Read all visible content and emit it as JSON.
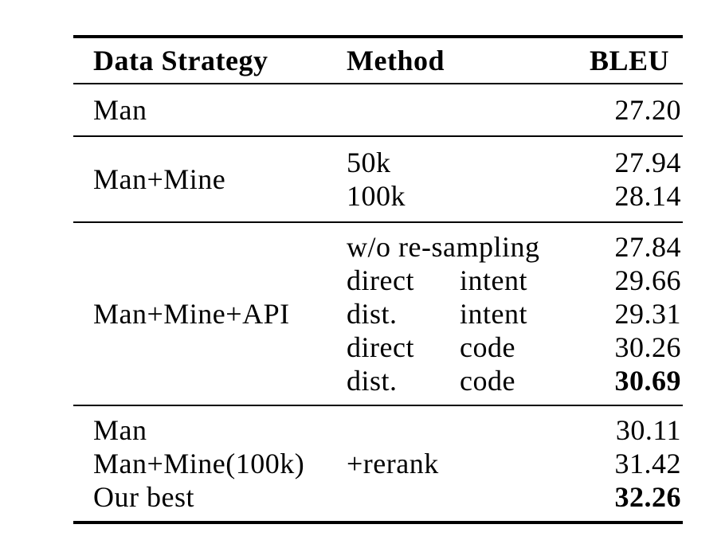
{
  "header": {
    "data_strategy": "Data Strategy",
    "method": "Method",
    "bleu": "BLEU"
  },
  "sections": [
    {
      "rows": [
        {
          "strategy": "Man",
          "method": "",
          "bleu": "27.20",
          "bold": false
        }
      ]
    },
    {
      "strategy": "Man+Mine",
      "rows": [
        {
          "method": "50k",
          "bleu": "27.94",
          "bold": false
        },
        {
          "method": "100k",
          "bleu": "28.14",
          "bold": false
        }
      ]
    },
    {
      "strategy": "Man+Mine+API",
      "rows": [
        {
          "method": "w/o re-sampling",
          "method2": "",
          "bleu": "27.84",
          "bold": false
        },
        {
          "method": "direct",
          "method2": "intent",
          "bleu": "29.66",
          "bold": false
        },
        {
          "method": "dist.",
          "method2": "intent",
          "bleu": "29.31",
          "bold": false
        },
        {
          "method": "direct",
          "method2": "code",
          "bleu": "30.26",
          "bold": false
        },
        {
          "method": "dist.",
          "method2": "code",
          "bleu": "30.69",
          "bold": true
        }
      ]
    },
    {
      "rows": [
        {
          "strategy": "Man",
          "method": "",
          "bleu": "30.11",
          "bold": false
        },
        {
          "strategy": "Man+Mine(100k)",
          "method": "+rerank",
          "bleu": "31.42",
          "bold": false
        },
        {
          "strategy": "Our best",
          "method": "",
          "bleu": "32.26",
          "bold": true
        }
      ]
    }
  ]
}
